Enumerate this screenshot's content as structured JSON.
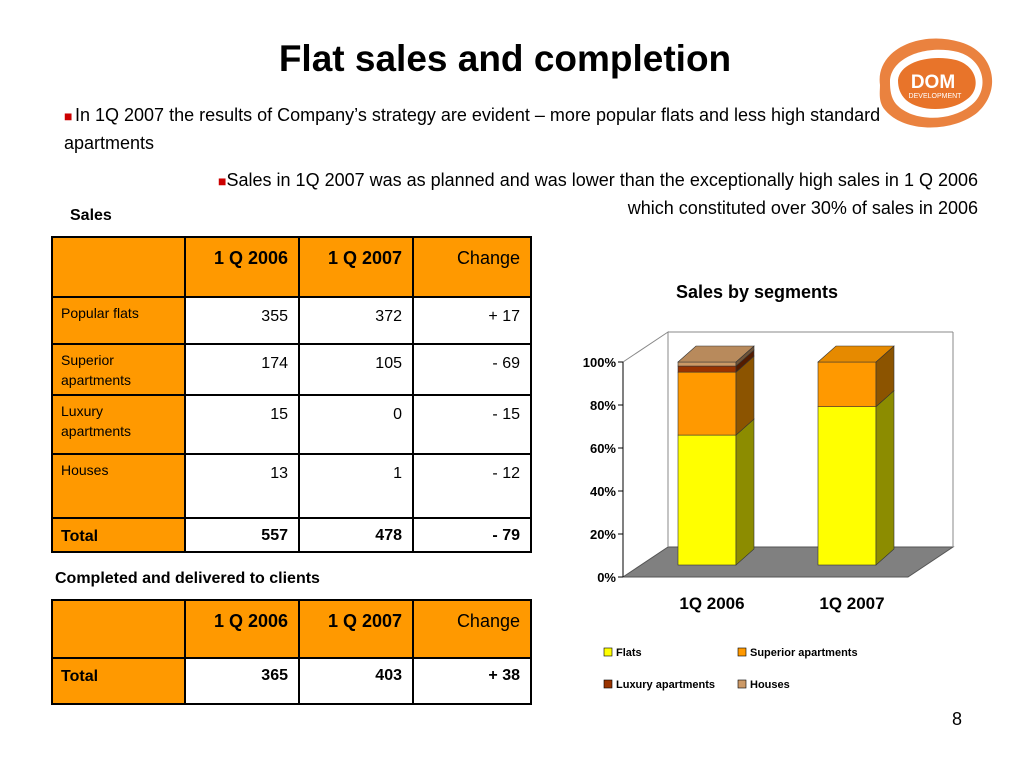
{
  "slide": {
    "title": "Flat sales and completion",
    "bullets": [
      "In 1Q 2007 the results of Company’s strategy are evident – more popular flats and less high standard apartments",
      "Sales in 1Q 2007 was as planned and was lower than the exceptionally high sales in 1 Q 2006 which constituted over 30%  of sales in 2006"
    ],
    "page_number": "8"
  },
  "logo": {
    "line1": "DOM",
    "line2": "DEVELOPMENT"
  },
  "sales_section": {
    "label": "Sales",
    "headers": [
      "",
      "1 Q 2006",
      "1 Q 2007",
      "Change"
    ],
    "rows": [
      {
        "label": "Popular flats",
        "q2006": "355",
        "q2007": "372",
        "change": "+ 17"
      },
      {
        "label": "Superior apartments",
        "q2006": "174",
        "q2007": "105",
        "change": "- 69"
      },
      {
        "label": "Luxury apartments",
        "q2006": "15",
        "q2007": "0",
        "change": "- 15"
      },
      {
        "label": "Houses",
        "q2006": "13",
        "q2007": "1",
        "change": "- 12"
      }
    ],
    "total": {
      "label": "Total",
      "q2006": "557",
      "q2007": "478",
      "change": "- 79"
    }
  },
  "completed_section": {
    "label": "Completed and delivered to clients",
    "headers": [
      "",
      "1 Q 2006",
      "1 Q 2007",
      "Change"
    ],
    "total": {
      "label": "Total",
      "q2006": "365",
      "q2007": "403",
      "change": "+ 38"
    }
  },
  "colors": {
    "table_header": "#ff9900",
    "bullet": "#cc0000",
    "logo": "#e8742a"
  },
  "chart_data": {
    "type": "bar",
    "stacked": true,
    "percent_stacked": true,
    "three_d": true,
    "title": "Sales by segments",
    "categories": [
      "1Q 2006",
      "1Q 2007"
    ],
    "y_ticks": [
      "0%",
      "20%",
      "40%",
      "60%",
      "80%",
      "100%"
    ],
    "ylim": [
      0,
      100
    ],
    "series": [
      {
        "name": "Flats",
        "color": "#ffff00",
        "values": [
          64,
          78
        ]
      },
      {
        "name": "Superior apartments",
        "color": "#ff9900",
        "values": [
          31,
          22
        ]
      },
      {
        "name": "Luxury apartments",
        "color": "#993300",
        "values": [
          3,
          0
        ]
      },
      {
        "name": "Houses",
        "color": "#cc9966",
        "values": [
          2,
          0
        ]
      }
    ],
    "legend_position": "bottom"
  }
}
